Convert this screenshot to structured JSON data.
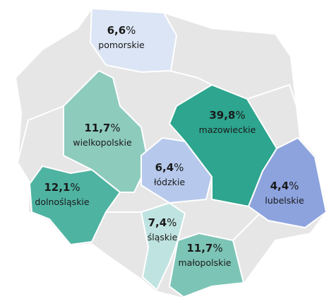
{
  "unit": "%",
  "regions": [
    {
      "name": "pomorskie",
      "value": 6.6,
      "value_label": "6,6",
      "color": "#dbe5f5"
    },
    {
      "name": "wielkopolskie",
      "value": 11.7,
      "value_label": "11,7",
      "color": "#8dcbbd"
    },
    {
      "name": "dolnośląskie",
      "value": 12.1,
      "value_label": "12,1",
      "color": "#4fb3a2"
    },
    {
      "name": "łódzkie",
      "value": 6.4,
      "value_label": "6,4",
      "color": "#b6c9ec"
    },
    {
      "name": "mazowieckie",
      "value": 39.8,
      "value_label": "39,8",
      "color": "#2ea58e"
    },
    {
      "name": "lubelskie",
      "value": 4.4,
      "value_label": "4,4",
      "color": "#8da3de"
    },
    {
      "name": "śląskie",
      "value": 7.4,
      "value_label": "7,4",
      "color": "#bfe3e0"
    },
    {
      "name": "małopolskie",
      "value": 11.7,
      "value_label": "11,7",
      "color": "#7cc4b6"
    }
  ]
}
